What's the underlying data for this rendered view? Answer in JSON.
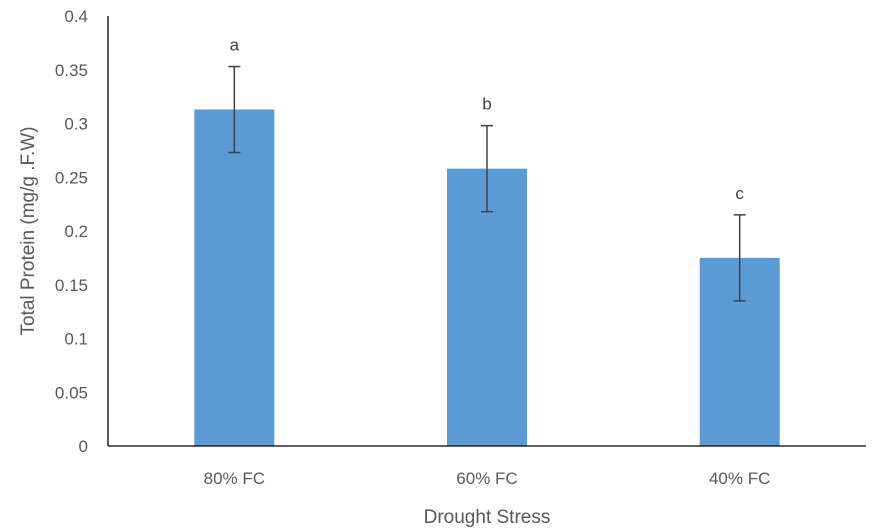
{
  "chart_data": {
    "type": "bar",
    "title": "",
    "xlabel": "Drought Stress",
    "ylabel": "Total Protein (mg/g .F.W)",
    "categories": [
      "80% FC",
      "60% FC",
      "40% FC"
    ],
    "series": [
      {
        "values": [
          0.313,
          0.258,
          0.175
        ],
        "error": [
          0.04,
          0.04,
          0.04
        ],
        "labels": [
          "a",
          "b",
          "c"
        ],
        "color": "#5B9BD5"
      }
    ],
    "ylim": [
      0,
      0.4
    ],
    "yticks": [
      "0",
      "0.05",
      "0.1",
      "0.15",
      "0.2",
      "0.25",
      "0.3",
      "0.35",
      "0.4"
    ],
    "grid": false,
    "legend": "none"
  }
}
